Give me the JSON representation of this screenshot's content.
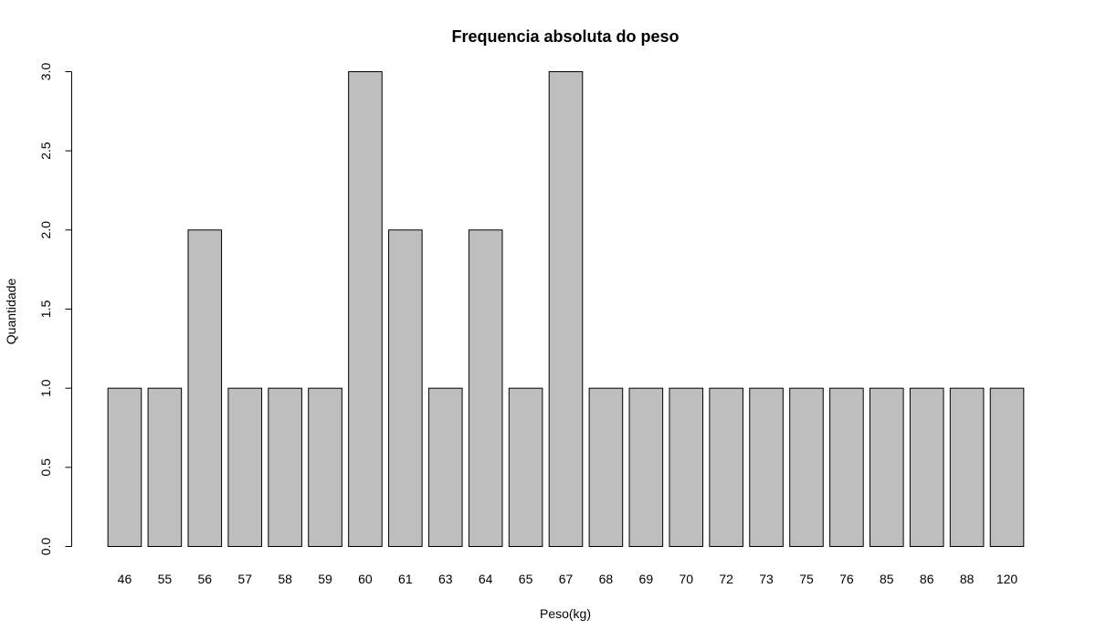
{
  "chart_data": {
    "type": "bar",
    "title": "Frequencia absoluta do peso",
    "xlabel": "Peso(kg)",
    "ylabel": "Quantidade",
    "categories": [
      "46",
      "55",
      "56",
      "57",
      "58",
      "59",
      "60",
      "61",
      "63",
      "64",
      "65",
      "67",
      "68",
      "69",
      "70",
      "72",
      "73",
      "75",
      "76",
      "85",
      "86",
      "88",
      "120"
    ],
    "values": [
      1,
      1,
      2,
      1,
      1,
      1,
      3,
      2,
      1,
      2,
      1,
      3,
      1,
      1,
      1,
      1,
      1,
      1,
      1,
      1,
      1,
      1,
      1
    ],
    "ylim": [
      0,
      3
    ],
    "yticks": [
      "0.0",
      "0.5",
      "1.0",
      "1.5",
      "2.0",
      "2.5",
      "3.0"
    ],
    "ytick_values": [
      0,
      0.5,
      1,
      1.5,
      2,
      2.5,
      3
    ],
    "bar_color": "#bebebe",
    "border_color": "#000000",
    "grid": false
  }
}
